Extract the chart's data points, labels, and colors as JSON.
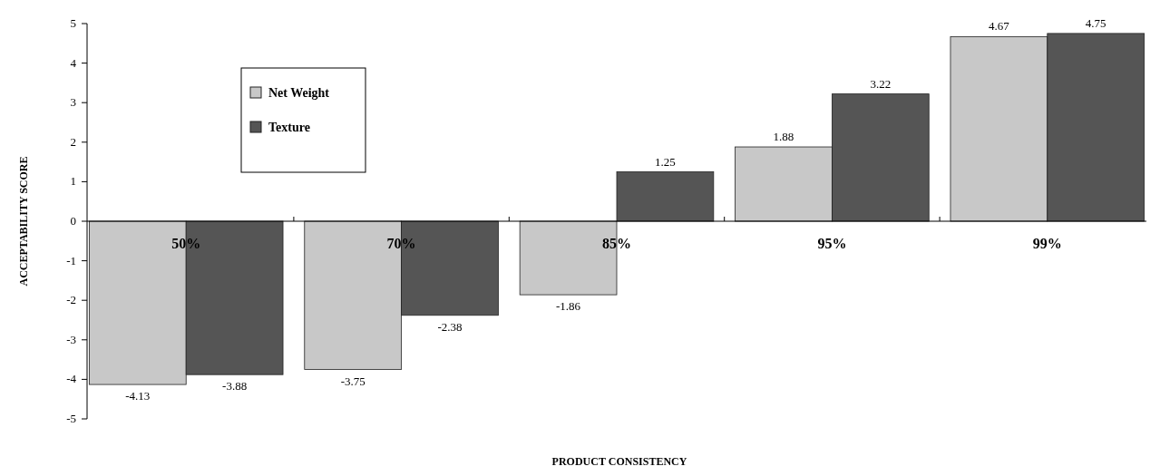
{
  "chart_data": {
    "type": "bar",
    "xlabel": "PRODUCT CONSISTENCY",
    "ylabel": "ACCEPTABILITY SCORE",
    "categories": [
      "50%",
      "70%",
      "85%",
      "95%",
      "99%"
    ],
    "series": [
      {
        "name": "Net Weight",
        "color": "#c8c8c8",
        "values": [
          -4.13,
          -3.75,
          -1.86,
          1.88,
          4.67
        ]
      },
      {
        "name": "Texture",
        "color": "#555555",
        "values": [
          -3.88,
          -2.38,
          1.25,
          3.22,
          4.75
        ]
      }
    ],
    "ylim": [
      -5,
      5
    ],
    "yticks": [
      -5,
      -4,
      -3,
      -2,
      -1,
      0,
      1,
      2,
      3,
      4,
      5
    ],
    "data_labels": true,
    "legend": "top left",
    "grid": false
  }
}
